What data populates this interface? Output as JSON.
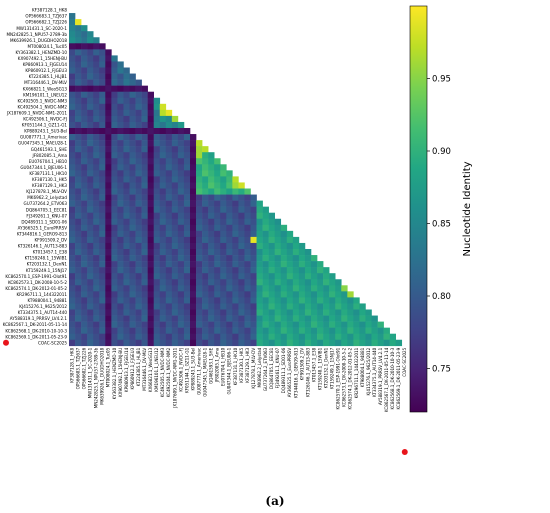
{
  "chart_data": {
    "type": "heatmap",
    "layout": "lower-triangular",
    "labels": [
      "KF387128.1_HK8",
      "OP566683.1_TZJ637",
      "OP566682.1_TZJ226",
      "MW131431.1_SC-2020-1",
      "MN242825.1_NPU57-2789-3b",
      "MK639926.1_DUGDHO2018",
      "MT008024.1_Tuc05",
      "KY363382.1_HENZMD-10",
      "KX907492.1_15HENJ-BU",
      "KP860913.1_FJGEU14",
      "KP860912.1_FJGEU3",
      "KT224385.1_HLJB1",
      "MT316446.1_DV-MLV",
      "KX66821.1_WeoSG13",
      "KM196101.1_LNEU12",
      "KC492505.1_NVDC-NM3",
      "KC492504.1_NVDC-NM2",
      "JX187609.1_NVDC-NM1-2011",
      "KC492506.1_NVDC-FJ",
      "KF051144.1_GZ11-G1",
      "KP889243.1_SU3-Bel",
      "GU087771.1_Amerivac",
      "GU047345.1_MAEU28-1",
      "GQ461593.1_SHE",
      "JF802085.1_Ama",
      "EU076704.1_HB10",
      "GU047344.1_BJEU06-1",
      "KF387131.1_HK10",
      "KF387130.1_HK5",
      "KF387129.1_HK3",
      "KJ127878.1_MLV-DV",
      "MK6962.2_Lelystad",
      "GU737264.2_ETV063",
      "DQ864705.1_EEC81",
      "FJ349261.1_KNU-07",
      "DQ489311.1_SD01-06",
      "AY366525.1_EuroPRRSV",
      "KT344816.1_GERO9-813",
      "KF991509.2_DV",
      "KT326146.1_AUT13-883",
      "KT013457.1_E38",
      "KT159248.1_15WIB1",
      "KT203132.1_DenN1",
      "KT159249.1_15NJ17",
      "KC862570.1_ESP-1991-Olot91",
      "KC862573.1_DK-2008-10-5-2",
      "KC862574.1_DK-2012-01-05-2",
      "KR296711.1_144322011",
      "KT988004.1_94881",
      "KJ415276.1_9625/2012",
      "KT334375.1_AUT14-440",
      "AY588319.1_PRRSV_LV4.2.1",
      "KC862567.1_DK-2011-05-11-14",
      "KC862568.1_DK-2010-10-10-3",
      "KC862569.1_DK-2011-05-23-9",
      "COAC-SC2025"
    ],
    "highlighted_label": "COAC-SC2025",
    "colorbar": {
      "label": "Nucleotide Identity",
      "ticks": [
        0.75,
        0.8,
        0.85,
        0.9,
        0.95
      ],
      "tick_labels": [
        "0.75",
        "0.80",
        "0.85",
        "0.90",
        "0.95"
      ],
      "range": [
        0.72,
        1.0
      ],
      "colormap": "viridis"
    },
    "caption": "(a)",
    "groups": [
      {
        "start": 0,
        "end": 5,
        "within": 0.84
      },
      {
        "start": 6,
        "end": 6,
        "within": 0.73
      },
      {
        "start": 7,
        "end": 12,
        "within": 0.81
      },
      {
        "start": 13,
        "end": 13,
        "within": 0.73
      },
      {
        "start": 14,
        "end": 19,
        "within": 0.85
      },
      {
        "start": 20,
        "end": 20,
        "within": 0.73
      },
      {
        "start": 21,
        "end": 30,
        "within": 0.9
      },
      {
        "start": 31,
        "end": 55,
        "within": 0.88
      }
    ],
    "between_groups": 0.79,
    "low_identity_indices": [
      6,
      13,
      20
    ],
    "low_identity_value": 0.73,
    "high_identity_pairs": [
      {
        "row": 2,
        "col": 1,
        "value": 0.99
      },
      {
        "row": 16,
        "col": 15,
        "value": 0.98
      },
      {
        "row": 17,
        "col": 15,
        "value": 0.97
      },
      {
        "row": 17,
        "col": 16,
        "value": 0.99
      },
      {
        "row": 18,
        "col": 17,
        "value": 0.96
      },
      {
        "row": 22,
        "col": 21,
        "value": 0.97
      },
      {
        "row": 23,
        "col": 21,
        "value": 0.96
      },
      {
        "row": 23,
        "col": 22,
        "value": 0.97
      },
      {
        "row": 28,
        "col": 27,
        "value": 0.97
      },
      {
        "row": 29,
        "col": 27,
        "value": 0.96
      },
      {
        "row": 29,
        "col": 28,
        "value": 0.98
      },
      {
        "row": 38,
        "col": 30,
        "value": 0.99
      },
      {
        "row": 24,
        "col": 21,
        "value": 0.96
      },
      {
        "row": 47,
        "col": 46,
        "value": 0.96
      },
      {
        "row": 46,
        "col": 45,
        "value": 0.95
      }
    ]
  }
}
